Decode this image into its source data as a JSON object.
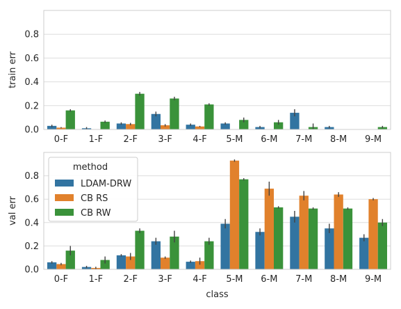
{
  "chart_data": [
    {
      "type": "bar",
      "xlabel": "",
      "ylabel": "train err",
      "ylim": [
        0,
        1.0
      ],
      "yticks": [
        "0.0",
        "0.2",
        "0.4",
        "0.6",
        "0.8"
      ],
      "grid": true,
      "categories": [
        "0-F",
        "1-F",
        "2-F",
        "3-F",
        "4-F",
        "5-M",
        "6-M",
        "7-M",
        "8-M",
        "9-M"
      ],
      "series": [
        {
          "name": "LDAM-DRW",
          "color": "#3274a1",
          "values": [
            0.03,
            0.01,
            0.05,
            0.13,
            0.04,
            0.05,
            0.02,
            0.14,
            0.02,
            0.0
          ],
          "err": [
            0.01,
            0.01,
            0.01,
            0.02,
            0.01,
            0.01,
            0.01,
            0.03,
            0.01,
            0.0
          ]
        },
        {
          "name": "CB RS",
          "color": "#e1812c",
          "values": [
            0.015,
            0.0,
            0.045,
            0.035,
            0.025,
            0.0,
            0.0,
            0.0,
            0.0,
            0.0
          ],
          "err": [
            0.005,
            0.0,
            0.01,
            0.01,
            0.005,
            0.0,
            0.0,
            0.0,
            0.0,
            0.0
          ]
        },
        {
          "name": "CB RW",
          "color": "#3a923a",
          "values": [
            0.16,
            0.065,
            0.3,
            0.26,
            0.21,
            0.08,
            0.06,
            0.02,
            0.0,
            0.02
          ],
          "err": [
            0.01,
            0.01,
            0.015,
            0.015,
            0.01,
            0.02,
            0.02,
            0.03,
            0.0,
            0.01
          ]
        }
      ]
    },
    {
      "type": "bar",
      "xlabel": "class",
      "ylabel": "val err",
      "ylim": [
        0,
        1.0
      ],
      "yticks": [
        "0.0",
        "0.2",
        "0.4",
        "0.6",
        "0.8"
      ],
      "grid": true,
      "legend": {
        "title": "method",
        "placement": "upper-left"
      },
      "categories": [
        "0-F",
        "1-F",
        "2-F",
        "3-F",
        "4-F",
        "5-M",
        "6-M",
        "7-M",
        "8-M",
        "9-M"
      ],
      "series": [
        {
          "name": "LDAM-DRW",
          "color": "#3274a1",
          "values": [
            0.06,
            0.02,
            0.12,
            0.24,
            0.065,
            0.39,
            0.32,
            0.45,
            0.35,
            0.27
          ],
          "err": [
            0.01,
            0.01,
            0.01,
            0.03,
            0.01,
            0.04,
            0.03,
            0.05,
            0.04,
            0.03
          ]
        },
        {
          "name": "CB RS",
          "color": "#e1812c",
          "values": [
            0.045,
            0.012,
            0.11,
            0.1,
            0.07,
            0.93,
            0.69,
            0.63,
            0.64,
            0.6
          ],
          "err": [
            0.01,
            0.01,
            0.03,
            0.01,
            0.03,
            0.01,
            0.06,
            0.04,
            0.02,
            0.01
          ]
        },
        {
          "name": "CB RW",
          "color": "#3a923a",
          "values": [
            0.16,
            0.08,
            0.33,
            0.28,
            0.24,
            0.77,
            0.53,
            0.52,
            0.52,
            0.4
          ],
          "err": [
            0.04,
            0.03,
            0.02,
            0.05,
            0.03,
            0.01,
            0.01,
            0.01,
            0.01,
            0.03
          ]
        }
      ]
    }
  ]
}
